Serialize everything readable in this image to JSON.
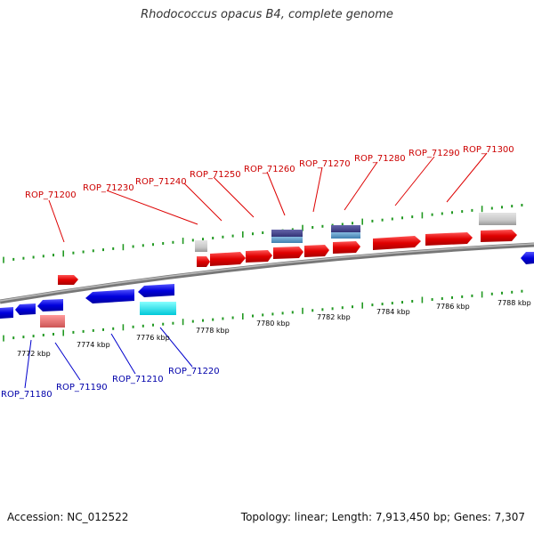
{
  "title": "Rhodococcus opacus B4, complete genome",
  "footer": {
    "accession_label": "Accession:",
    "accession": "NC_012522",
    "topology_label": "Topology:",
    "topology": "linear",
    "length_label": "Length:",
    "length": "7,913,450 bp",
    "genes_label": "Genes:",
    "genes": "7,307"
  },
  "colors": {
    "forward_gene": "#e00000",
    "reverse_gene": "#0000dd",
    "pseudo_gray": "#c8c8c8",
    "rna_purple": "#444488",
    "rna_blue": "#5b9bc8",
    "cyan": "#00eeee",
    "pink": "#ee7777",
    "backbone": "#888888",
    "tick": "#229922"
  },
  "scale_labels": [
    "7772 kbp",
    "7774 kbp",
    "7776 kbp",
    "7778 kbp",
    "7780 kbp",
    "7782 kbp",
    "7784 kbp",
    "7786 kbp",
    "7788 kbp"
  ],
  "top_labels": [
    "ROP_71200",
    "ROP_71230",
    "ROP_71240",
    "ROP_71250",
    "ROP_71260",
    "ROP_71270",
    "ROP_71280",
    "ROP_71290",
    "ROP_71300"
  ],
  "bottom_labels": [
    "ROP_71180",
    "ROP_71190",
    "ROP_71210",
    "ROP_71220"
  ]
}
